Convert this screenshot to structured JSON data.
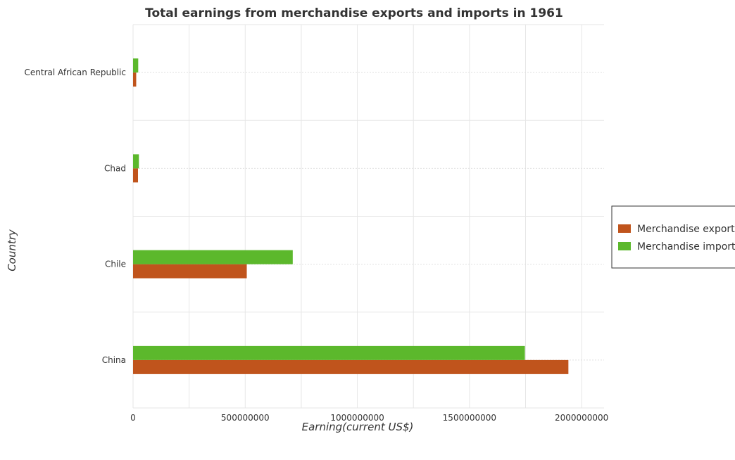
{
  "chart_data": {
    "type": "bar",
    "orientation": "horizontal",
    "title": "Total earnings from merchandise exports and imports in 1961",
    "xlabel": "Earning(current US$)",
    "ylabel": "Country",
    "categories": [
      "Central African Republic",
      "Chad",
      "Chile",
      "China"
    ],
    "series": [
      {
        "name": "Merchandise exports",
        "color": "#c0541c",
        "values": [
          14000000,
          22000000,
          507000000,
          1941000000
        ]
      },
      {
        "name": "Merchandise imports",
        "color": "#5cb82c",
        "values": [
          23000000,
          26000000,
          712000000,
          1747000000
        ]
      }
    ],
    "xlim": [
      0,
      2100000000
    ],
    "xticks": [
      0,
      500000000,
      1000000000,
      1500000000,
      2000000000
    ],
    "xtick_labels": [
      "0",
      "500000000",
      "1000000000",
      "1500000000",
      "2000000000"
    ],
    "grid": true,
    "legend_position": "right"
  }
}
